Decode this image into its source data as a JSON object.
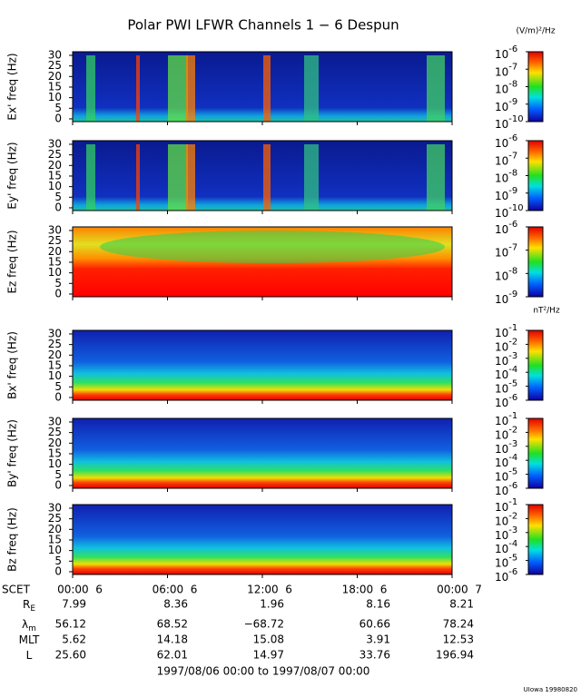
{
  "chart_data": {
    "type": "spectrogram",
    "title": "Polar PWI LFWR Channels 1 − 6 Despun",
    "xlim": [
      0,
      24
    ],
    "xticks": [
      {
        "value": 0,
        "label": "00:00  6"
      },
      {
        "value": 6,
        "label": "06:00  6"
      },
      {
        "value": 12,
        "label": "12:00  6"
      },
      {
        "value": 18,
        "label": "18:00  6"
      },
      {
        "value": 24,
        "label": "00:00  7"
      }
    ],
    "x_label": "SCET",
    "panels": [
      {
        "ylabel": "Ex' freq (Hz)",
        "ylim": [
          -1.3,
          31.7
        ],
        "yticks": [
          0,
          5,
          10,
          15,
          20,
          25,
          30
        ],
        "unit": "(V/m)²/Hz",
        "log": true,
        "clim": [
          1e-10,
          1e-06
        ],
        "cticks": [
          {
            "value": 1e-06,
            "label": "10",
            "exp": "-6"
          },
          {
            "value": 1e-07,
            "label": "10",
            "exp": "-7"
          },
          {
            "value": 1e-08,
            "label": "10",
            "exp": "-8"
          },
          {
            "value": 1e-09,
            "label": "10",
            "exp": "-9"
          },
          {
            "value": 1e-10,
            "label": "10",
            "exp": "-10"
          }
        ]
      },
      {
        "ylabel": "Ey' freq (Hz)",
        "ylim": [
          -1.3,
          31.7
        ],
        "yticks": [
          0,
          5,
          10,
          15,
          20,
          25,
          30
        ],
        "log": true,
        "clim": [
          1e-10,
          1e-06
        ],
        "cticks": [
          {
            "value": 1e-06,
            "label": "10",
            "exp": "-6"
          },
          {
            "value": 1e-07,
            "label": "10",
            "exp": "-7"
          },
          {
            "value": 1e-08,
            "label": "10",
            "exp": "-8"
          },
          {
            "value": 1e-09,
            "label": "10",
            "exp": "-9"
          },
          {
            "value": 1e-10,
            "label": "10",
            "exp": "-10"
          }
        ]
      },
      {
        "ylabel": "Ez freq (Hz)",
        "ylim": [
          -1.3,
          31.7
        ],
        "yticks": [
          0,
          5,
          10,
          15,
          20,
          25,
          30
        ],
        "log": true,
        "clim": [
          1e-09,
          1e-06
        ],
        "cticks": [
          {
            "value": 1e-06,
            "label": "10",
            "exp": "-6"
          },
          {
            "value": 1e-07,
            "label": "10",
            "exp": "-7"
          },
          {
            "value": 1e-08,
            "label": "10",
            "exp": "-8"
          },
          {
            "value": 1e-09,
            "label": "10",
            "exp": "-9"
          }
        ]
      },
      {
        "ylabel": "Bx' freq (Hz)",
        "ylim": [
          -1.3,
          31.7
        ],
        "yticks": [
          0,
          5,
          10,
          15,
          20,
          25,
          30
        ],
        "unit": "nT²/Hz",
        "log": true,
        "clim": [
          1e-06,
          0.1
        ],
        "cticks": [
          {
            "value": 0.1,
            "label": "10",
            "exp": "-1"
          },
          {
            "value": 0.01,
            "label": "10",
            "exp": "-2"
          },
          {
            "value": 0.001,
            "label": "10",
            "exp": "-3"
          },
          {
            "value": 0.0001,
            "label": "10",
            "exp": "-4"
          },
          {
            "value": 1e-05,
            "label": "10",
            "exp": "-5"
          },
          {
            "value": 1e-06,
            "label": "10",
            "exp": "-6"
          }
        ]
      },
      {
        "ylabel": "By' freq (Hz)",
        "ylim": [
          -1.3,
          31.7
        ],
        "yticks": [
          0,
          5,
          10,
          15,
          20,
          25,
          30
        ],
        "log": true,
        "clim": [
          1e-06,
          0.1
        ],
        "cticks": [
          {
            "value": 0.1,
            "label": "10",
            "exp": "-1"
          },
          {
            "value": 0.01,
            "label": "10",
            "exp": "-2"
          },
          {
            "value": 0.001,
            "label": "10",
            "exp": "-3"
          },
          {
            "value": 0.0001,
            "label": "10",
            "exp": "-4"
          },
          {
            "value": 1e-05,
            "label": "10",
            "exp": "-5"
          },
          {
            "value": 1e-06,
            "label": "10",
            "exp": "-6"
          }
        ]
      },
      {
        "ylabel": "Bz freq (Hz)",
        "ylim": [
          -1.3,
          31.7
        ],
        "yticks": [
          0,
          5,
          10,
          15,
          20,
          25,
          30
        ],
        "log": true,
        "clim": [
          1e-06,
          0.1
        ],
        "cticks": [
          {
            "value": 0.1,
            "label": "10",
            "exp": "-1"
          },
          {
            "value": 0.01,
            "label": "10",
            "exp": "-2"
          },
          {
            "value": 0.001,
            "label": "10",
            "exp": "-3"
          },
          {
            "value": 0.0001,
            "label": "10",
            "exp": "-4"
          },
          {
            "value": 1e-05,
            "label": "10",
            "exp": "-5"
          },
          {
            "value": 1e-06,
            "label": "10",
            "exp": "-6"
          }
        ]
      }
    ],
    "orbit": [
      {
        "label": "R",
        "sub": "E",
        "values": [
          "7.99",
          "8.36",
          "1.96",
          "8.16",
          "8.21"
        ]
      },
      {
        "label": "λ",
        "sub": "m",
        "values": [
          "56.12",
          "68.52",
          "−68.72",
          "60.66",
          "78.24"
        ]
      },
      {
        "label": "MLT",
        "values": [
          "5.62",
          "14.18",
          "15.08",
          "3.91",
          "12.53"
        ]
      },
      {
        "label": "L",
        "values": [
          "25.60",
          "62.01",
          "14.97",
          "33.76",
          "196.94"
        ]
      }
    ],
    "date_range": "1997/08/06 00:00 to 1997/08/07 00:00",
    "credit": "UIowa 19980820"
  }
}
